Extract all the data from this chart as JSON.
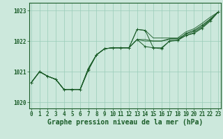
{
  "xlabel": "Graphe pression niveau de la mer (hPa)",
  "ylim": [
    1019.8,
    1023.25
  ],
  "xlim": [
    -0.3,
    23.3
  ],
  "yticks": [
    1020,
    1021,
    1022,
    1023
  ],
  "xticks": [
    0,
    1,
    2,
    3,
    4,
    5,
    6,
    7,
    8,
    9,
    10,
    11,
    12,
    13,
    14,
    15,
    16,
    17,
    18,
    19,
    20,
    21,
    22,
    23
  ],
  "background_color": "#cce8dc",
  "grid_color": "#99ccb8",
  "line_color": "#1a5c28",
  "series_with_markers": [
    [
      1020.65,
      1021.0,
      1020.85,
      1020.75,
      1020.42,
      1020.42,
      1020.42,
      1021.05,
      1021.55,
      1021.75,
      1021.78,
      1021.78,
      1021.78,
      1022.05,
      1021.82,
      1021.78,
      1021.75,
      1022.0,
      1022.02,
      1022.18,
      1022.25,
      1022.42,
      1022.65,
      1022.95
    ],
    [
      1020.65,
      1021.0,
      1020.85,
      1020.75,
      1020.42,
      1020.42,
      1020.42,
      1021.1,
      1021.55,
      1021.75,
      1021.78,
      1021.78,
      1021.78,
      1022.38,
      1022.35,
      1021.78,
      1021.78,
      1022.0,
      1022.02,
      1022.25,
      1022.35,
      1022.52,
      1022.72,
      1022.95
    ]
  ],
  "series_lines_only": [
    [
      1020.65,
      1021.0,
      1020.85,
      1020.75,
      1020.42,
      1020.42,
      1020.42,
      1021.05,
      1021.55,
      1021.75,
      1021.78,
      1021.78,
      1021.78,
      1022.05,
      1022.0,
      1022.0,
      1022.0,
      1022.05,
      1022.05,
      1022.18,
      1022.28,
      1022.45,
      1022.68,
      1022.95
    ],
    [
      1020.65,
      1021.0,
      1020.85,
      1020.75,
      1020.42,
      1020.42,
      1020.42,
      1021.1,
      1021.55,
      1021.75,
      1021.78,
      1021.78,
      1021.78,
      1022.05,
      1022.05,
      1022.0,
      1022.0,
      1022.08,
      1022.08,
      1022.22,
      1022.32,
      1022.48,
      1022.7,
      1022.95
    ],
    [
      1020.65,
      1021.0,
      1020.85,
      1020.75,
      1020.42,
      1020.42,
      1020.42,
      1021.1,
      1021.55,
      1021.75,
      1021.78,
      1021.78,
      1021.78,
      1022.38,
      1022.35,
      1022.1,
      1022.1,
      1022.1,
      1022.1,
      1022.3,
      1022.4,
      1022.58,
      1022.78,
      1022.95
    ]
  ],
  "fontsize_ticks": 5.5,
  "fontsize_label": 7
}
